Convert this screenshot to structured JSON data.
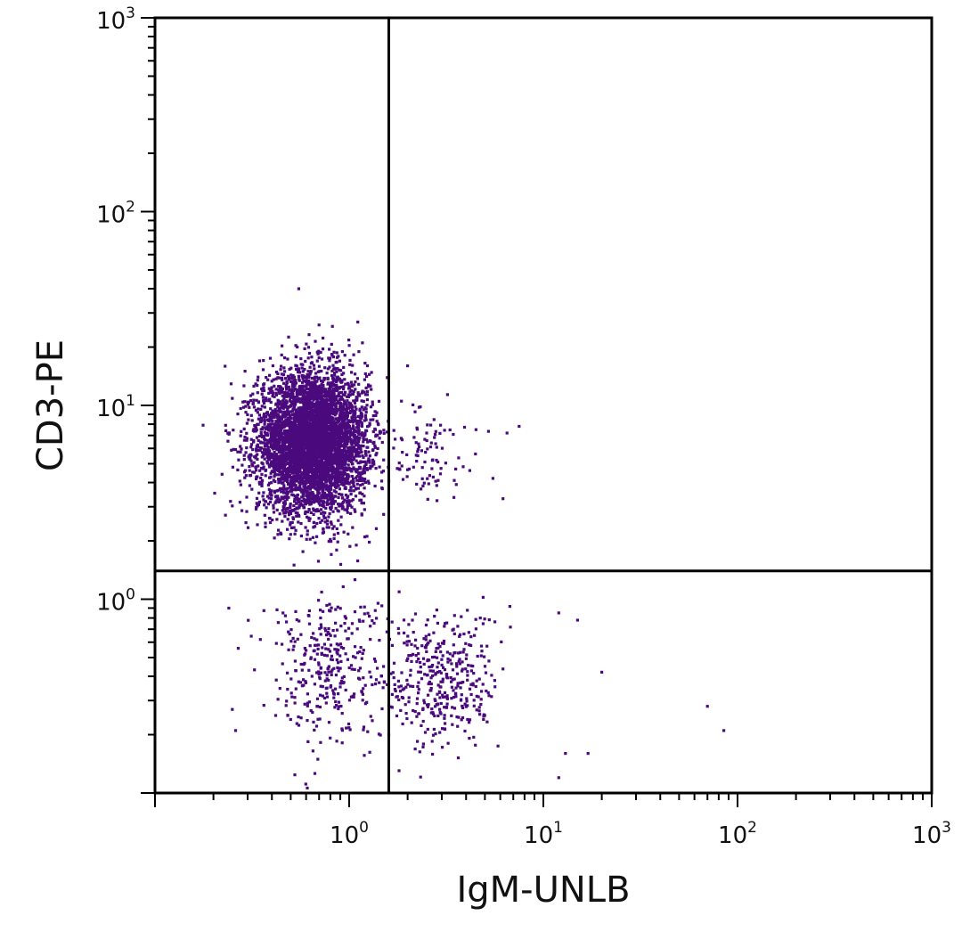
{
  "chart_data": {
    "type": "scatter",
    "title": "",
    "xlabel": "IgM-UNLB",
    "ylabel": "CD3-PE",
    "xscale": "log",
    "yscale": "log",
    "xlim": [
      0.1,
      1000
    ],
    "ylim": [
      0.1,
      1000
    ],
    "grid": false,
    "legend": "none",
    "point_color": "#4a0a7d",
    "x_ticks": [
      {
        "base": "10",
        "exp": "0"
      },
      {
        "base": "10",
        "exp": "1"
      },
      {
        "base": "10",
        "exp": "2"
      },
      {
        "base": "10",
        "exp": "3"
      }
    ],
    "y_ticks": [
      {
        "base": "10",
        "exp": "0"
      },
      {
        "base": "10",
        "exp": "1"
      },
      {
        "base": "10",
        "exp": "2"
      },
      {
        "base": "10",
        "exp": "3"
      }
    ],
    "quadrant_gates": {
      "x": 1.6,
      "y": 1.4
    },
    "populations": [
      {
        "quadrant": "upper-left",
        "center": [
          0.65,
          6.5
        ],
        "spread_log10": [
          0.14,
          0.18
        ],
        "count": 5200
      },
      {
        "quadrant": "upper-right",
        "center": [
          2.3,
          6.0
        ],
        "spread_log10": [
          0.12,
          0.12
        ],
        "count": 90
      },
      {
        "quadrant": "lower-left",
        "center": [
          0.8,
          0.45
        ],
        "spread_log10": [
          0.17,
          0.2
        ],
        "count": 340
      },
      {
        "quadrant": "lower-right",
        "center": [
          3.0,
          0.38
        ],
        "spread_log10": [
          0.15,
          0.18
        ],
        "count": 380
      }
    ],
    "outliers": [
      [
        0.55,
        40
      ],
      [
        0.7,
        26
      ],
      [
        2.0,
        16
      ],
      [
        4.5,
        7.5
      ],
      [
        6.5,
        7.2
      ],
      [
        7.5,
        7.8
      ],
      [
        5.5,
        4.2
      ],
      [
        6.2,
        3.3
      ],
      [
        12,
        0.85
      ],
      [
        15,
        0.78
      ],
      [
        20,
        0.42
      ],
      [
        70,
        0.28
      ],
      [
        85,
        0.21
      ],
      [
        13,
        0.16
      ],
      [
        17,
        0.16
      ],
      [
        12,
        0.12
      ],
      [
        0.25,
        0.27
      ],
      [
        0.26,
        0.21
      ],
      [
        0.24,
        0.9
      ]
    ]
  }
}
